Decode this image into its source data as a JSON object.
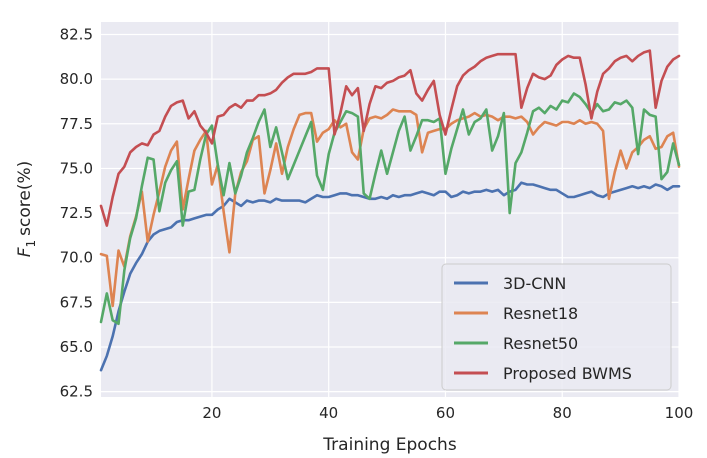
{
  "chart_data": {
    "type": "line",
    "xlabel": "Training Epochs",
    "ylabel": "score(%)",
    "ylabel_math": "F",
    "ylabel_sub": "1",
    "xlim": [
      1,
      100
    ],
    "ylim": [
      62.2,
      83.2
    ],
    "xticks": [
      20,
      40,
      60,
      80,
      100
    ],
    "yticks": [
      62.5,
      65.0,
      67.5,
      70.0,
      72.5,
      75.0,
      77.5,
      80.0,
      82.5
    ],
    "grid": true,
    "legend_position": "lower-right",
    "x_start": 1,
    "series": [
      {
        "name": "3D-CNN",
        "color": "#4c72b0",
        "values": [
          63.7,
          64.5,
          65.6,
          67.0,
          68.1,
          69.1,
          69.7,
          70.2,
          70.9,
          71.3,
          71.5,
          71.6,
          71.7,
          72.0,
          72.1,
          72.1,
          72.2,
          72.3,
          72.4,
          72.4,
          72.7,
          72.9,
          73.3,
          73.1,
          72.9,
          73.2,
          73.1,
          73.2,
          73.2,
          73.1,
          73.3,
          73.2,
          73.2,
          73.2,
          73.2,
          73.1,
          73.3,
          73.5,
          73.4,
          73.4,
          73.5,
          73.6,
          73.6,
          73.5,
          73.5,
          73.4,
          73.3,
          73.3,
          73.4,
          73.3,
          73.5,
          73.4,
          73.5,
          73.5,
          73.6,
          73.7,
          73.6,
          73.5,
          73.7,
          73.7,
          73.4,
          73.5,
          73.7,
          73.6,
          73.7,
          73.7,
          73.8,
          73.7,
          73.8,
          73.5,
          73.7,
          73.8,
          74.2,
          74.1,
          74.1,
          74.0,
          73.9,
          73.8,
          73.8,
          73.6,
          73.4,
          73.4,
          73.5,
          73.6,
          73.7,
          73.5,
          73.4,
          73.6,
          73.7,
          73.8,
          73.9,
          74.0,
          73.9,
          74.0,
          73.9,
          74.1,
          74.0,
          73.8,
          74.0,
          74.0
        ]
      },
      {
        "name": "Resnet18",
        "color": "#dd8452",
        "values": [
          70.2,
          70.1,
          67.3,
          70.4,
          69.5,
          71.2,
          72.3,
          73.7,
          70.9,
          72.4,
          73.7,
          75.1,
          76.0,
          76.5,
          72.7,
          74.4,
          76.0,
          76.6,
          77.1,
          74.1,
          75.2,
          72.6,
          70.3,
          73.6,
          74.8,
          75.4,
          76.6,
          76.8,
          73.6,
          74.9,
          76.4,
          74.7,
          76.2,
          77.2,
          78.0,
          78.1,
          78.1,
          76.5,
          77.0,
          77.2,
          77.7,
          77.3,
          77.5,
          75.9,
          75.5,
          77.2,
          77.8,
          77.9,
          77.8,
          78.0,
          78.3,
          78.2,
          78.2,
          78.2,
          78.0,
          75.9,
          77.0,
          77.1,
          77.2,
          77.2,
          77.5,
          77.7,
          77.8,
          77.9,
          78.1,
          77.9,
          78.0,
          77.9,
          77.7,
          77.9,
          77.9,
          77.8,
          77.9,
          77.6,
          76.9,
          77.3,
          77.6,
          77.5,
          77.4,
          77.6,
          77.6,
          77.5,
          77.7,
          77.5,
          77.6,
          77.5,
          77.1,
          73.3,
          74.8,
          76.0,
          75.0,
          75.9,
          76.2,
          76.6,
          76.8,
          76.1,
          76.2,
          76.8,
          77.0,
          75.1
        ]
      },
      {
        "name": "Resnet50",
        "color": "#55a868",
        "values": [
          66.4,
          68.0,
          66.5,
          66.3,
          69.3,
          71.1,
          72.2,
          74.0,
          75.6,
          75.5,
          72.6,
          74.2,
          74.9,
          75.4,
          71.8,
          73.7,
          73.8,
          75.5,
          76.9,
          77.4,
          75.2,
          73.5,
          75.3,
          73.6,
          74.6,
          75.9,
          76.7,
          77.6,
          78.3,
          76.2,
          77.3,
          75.9,
          74.4,
          75.2,
          76.0,
          76.8,
          77.6,
          74.6,
          73.8,
          75.8,
          77.0,
          77.6,
          78.2,
          78.1,
          77.9,
          73.6,
          73.3,
          74.7,
          76.0,
          74.7,
          75.9,
          77.1,
          77.9,
          76.0,
          76.8,
          77.7,
          77.7,
          77.6,
          77.8,
          74.7,
          76.1,
          77.2,
          78.3,
          76.9,
          77.6,
          77.8,
          78.3,
          76.0,
          76.8,
          78.1,
          72.5,
          75.3,
          75.9,
          77.0,
          78.2,
          78.4,
          78.1,
          78.5,
          78.3,
          78.8,
          78.7,
          79.2,
          79.0,
          78.6,
          78.1,
          78.6,
          78.2,
          78.3,
          78.7,
          78.6,
          78.8,
          78.4,
          75.8,
          78.3,
          78.0,
          77.9,
          74.4,
          74.8,
          76.4,
          75.2
        ]
      },
      {
        "name": "Proposed BWMS",
        "color": "#c44e52",
        "values": [
          72.9,
          71.8,
          73.4,
          74.7,
          75.1,
          75.9,
          76.2,
          76.4,
          76.3,
          76.9,
          77.1,
          77.9,
          78.5,
          78.7,
          78.8,
          77.8,
          78.2,
          77.4,
          77.0,
          76.4,
          77.9,
          78.0,
          78.4,
          78.6,
          78.4,
          78.8,
          78.8,
          79.1,
          79.1,
          79.2,
          79.4,
          79.8,
          80.1,
          80.3,
          80.3,
          80.3,
          80.4,
          80.6,
          80.6,
          80.6,
          76.9,
          78.1,
          79.6,
          79.1,
          79.5,
          77.1,
          78.6,
          79.6,
          79.5,
          79.8,
          79.9,
          80.1,
          80.2,
          80.5,
          79.2,
          78.8,
          79.4,
          79.9,
          78.0,
          76.9,
          78.3,
          79.6,
          80.2,
          80.5,
          80.7,
          81.0,
          81.2,
          81.3,
          81.4,
          81.4,
          81.4,
          81.4,
          78.4,
          79.5,
          80.3,
          80.1,
          80.0,
          80.2,
          80.8,
          81.1,
          81.3,
          81.2,
          81.2,
          79.7,
          77.8,
          79.3,
          80.3,
          80.6,
          81.0,
          81.2,
          81.3,
          81.0,
          81.3,
          81.5,
          81.6,
          78.4,
          79.9,
          80.7,
          81.1,
          81.3
        ]
      }
    ]
  }
}
